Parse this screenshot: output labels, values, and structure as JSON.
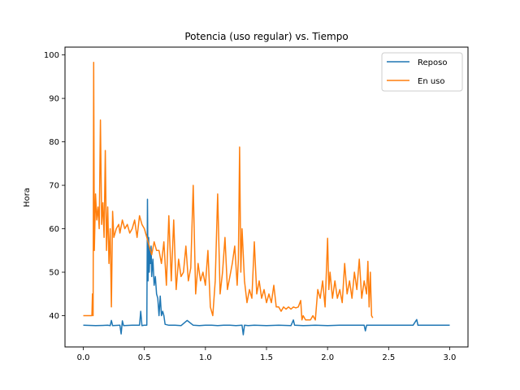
{
  "chart_data": {
    "type": "line",
    "title": "Potencia (uso regular) vs. Tiempo",
    "xlabel": "",
    "ylabel": "Hora",
    "xlim": [
      -0.15,
      3.15
    ],
    "ylim": [
      32.8,
      101.8
    ],
    "xticks": [
      {
        "value": 0.0,
        "label": "0.0"
      },
      {
        "value": 0.5,
        "label": "0.5"
      },
      {
        "value": 1.0,
        "label": "1.0"
      },
      {
        "value": 1.5,
        "label": "1.5"
      },
      {
        "value": 2.0,
        "label": "2.0"
      },
      {
        "value": 2.5,
        "label": "2.5"
      },
      {
        "value": 3.0,
        "label": "3.0"
      }
    ],
    "yticks": [
      {
        "value": 40,
        "label": "40"
      },
      {
        "value": 50,
        "label": "50"
      },
      {
        "value": 60,
        "label": "60"
      },
      {
        "value": 70,
        "label": "70"
      },
      {
        "value": 80,
        "label": "80"
      },
      {
        "value": 90,
        "label": "90"
      },
      {
        "value": 100,
        "label": "100"
      }
    ],
    "grid": false,
    "legend_position": "top-right",
    "series": [
      {
        "name": "Reposo",
        "color": "#1f77b4",
        "x": [
          0.0,
          0.1,
          0.2,
          0.22,
          0.23,
          0.24,
          0.3,
          0.31,
          0.32,
          0.33,
          0.4,
          0.46,
          0.47,
          0.48,
          0.5,
          0.52,
          0.525,
          0.53,
          0.535,
          0.54,
          0.545,
          0.55,
          0.555,
          0.56,
          0.57,
          0.58,
          0.59,
          0.6,
          0.61,
          0.62,
          0.63,
          0.64,
          0.65,
          0.66,
          0.67,
          0.7,
          0.75,
          0.8,
          0.85,
          0.9,
          0.95,
          1.0,
          1.05,
          1.1,
          1.15,
          1.2,
          1.25,
          1.3,
          1.31,
          1.32,
          1.35,
          1.4,
          1.5,
          1.6,
          1.7,
          1.72,
          1.73,
          1.8,
          1.9,
          2.0,
          2.1,
          2.2,
          2.3,
          2.31,
          2.32,
          2.4,
          2.5,
          2.6,
          2.7,
          2.73,
          2.74,
          2.8,
          2.9,
          3.0
        ],
        "y": [
          37.8,
          37.7,
          37.8,
          37.7,
          38.9,
          37.7,
          37.8,
          35.8,
          38.8,
          37.7,
          37.8,
          37.8,
          41.0,
          37.7,
          37.8,
          37.8,
          66.8,
          48.0,
          58.0,
          50.0,
          55.0,
          52.0,
          56.0,
          49.0,
          53.0,
          47.0,
          49.0,
          45.0,
          44.0,
          40.0,
          44.5,
          40.0,
          41.0,
          40.0,
          38.0,
          37.8,
          37.8,
          37.7,
          38.9,
          37.8,
          37.7,
          37.8,
          37.8,
          37.7,
          37.8,
          37.8,
          37.7,
          37.8,
          35.6,
          37.8,
          37.7,
          37.8,
          37.7,
          37.8,
          37.7,
          39.0,
          37.8,
          37.7,
          37.8,
          37.7,
          37.8,
          37.8,
          37.8,
          36.5,
          37.8,
          37.8,
          37.8,
          37.8,
          37.8,
          39.1,
          37.8,
          37.8,
          37.8,
          37.8
        ]
      },
      {
        "name": "En uso",
        "color": "#ff7f0e",
        "x": [
          0.0,
          0.05,
          0.07,
          0.075,
          0.08,
          0.085,
          0.09,
          0.1,
          0.11,
          0.12,
          0.13,
          0.14,
          0.15,
          0.16,
          0.17,
          0.18,
          0.19,
          0.2,
          0.21,
          0.22,
          0.23,
          0.24,
          0.25,
          0.27,
          0.29,
          0.3,
          0.32,
          0.34,
          0.36,
          0.38,
          0.4,
          0.42,
          0.44,
          0.46,
          0.48,
          0.5,
          0.52,
          0.53,
          0.54,
          0.56,
          0.58,
          0.6,
          0.62,
          0.64,
          0.66,
          0.68,
          0.7,
          0.72,
          0.74,
          0.76,
          0.78,
          0.8,
          0.82,
          0.84,
          0.86,
          0.88,
          0.9,
          0.92,
          0.94,
          0.96,
          0.98,
          1.0,
          1.02,
          1.04,
          1.06,
          1.08,
          1.1,
          1.12,
          1.14,
          1.16,
          1.18,
          1.2,
          1.22,
          1.24,
          1.26,
          1.27,
          1.28,
          1.29,
          1.3,
          1.32,
          1.34,
          1.36,
          1.38,
          1.4,
          1.42,
          1.44,
          1.46,
          1.48,
          1.5,
          1.52,
          1.54,
          1.56,
          1.58,
          1.6,
          1.62,
          1.64,
          1.66,
          1.68,
          1.7,
          1.72,
          1.74,
          1.76,
          1.78,
          1.79,
          1.8,
          1.82,
          1.84,
          1.86,
          1.88,
          1.9,
          1.92,
          1.94,
          1.96,
          1.98,
          2.0,
          2.01,
          2.02,
          2.04,
          2.06,
          2.08,
          2.1,
          2.12,
          2.14,
          2.16,
          2.18,
          2.2,
          2.22,
          2.24,
          2.26,
          2.28,
          2.3,
          2.32,
          2.33,
          2.34,
          2.35,
          2.36,
          2.37
        ],
        "y": [
          40.0,
          40.0,
          40.0,
          45.0,
          40.0,
          98.3,
          55.0,
          68.0,
          62.0,
          65.0,
          60.0,
          85.0,
          61.0,
          66.0,
          58.0,
          78.0,
          55.0,
          65.0,
          52.0,
          60.0,
          42.0,
          64.0,
          58.0,
          60.0,
          61.0,
          59.0,
          62.0,
          60.0,
          61.0,
          59.0,
          60.0,
          62.0,
          58.0,
          63.0,
          61.0,
          60.0,
          58.0,
          57.0,
          56.0,
          54.0,
          57.0,
          55.0,
          55.0,
          52.0,
          57.0,
          47.0,
          63.0,
          48.0,
          62.0,
          46.0,
          53.0,
          49.0,
          50.0,
          56.0,
          48.0,
          51.0,
          70.0,
          45.0,
          52.0,
          48.0,
          50.0,
          47.0,
          55.0,
          42.0,
          40.0,
          48.0,
          68.0,
          45.0,
          50.0,
          58.0,
          46.0,
          49.0,
          52.0,
          56.0,
          47.0,
          53.0,
          78.8,
          50.0,
          60.0,
          48.0,
          43.0,
          46.0,
          44.0,
          57.0,
          45.0,
          48.0,
          44.0,
          46.0,
          43.0,
          45.0,
          43.0,
          47.0,
          42.0,
          42.0,
          41.0,
          42.0,
          41.5,
          42.0,
          41.5,
          42.0,
          41.8,
          42.0,
          43.5,
          39.0,
          40.0,
          39.0,
          39.0,
          39.0,
          40.0,
          39.0,
          46.0,
          44.0,
          48.0,
          42.0,
          57.8,
          46.0,
          50.0,
          44.0,
          48.0,
          44.0,
          46.0,
          43.0,
          52.0,
          45.0,
          48.0,
          44.0,
          50.0,
          46.0,
          53.0,
          44.0,
          48.0,
          45.0,
          52.5,
          42.0,
          50.0,
          40.0,
          39.5
        ]
      }
    ]
  }
}
